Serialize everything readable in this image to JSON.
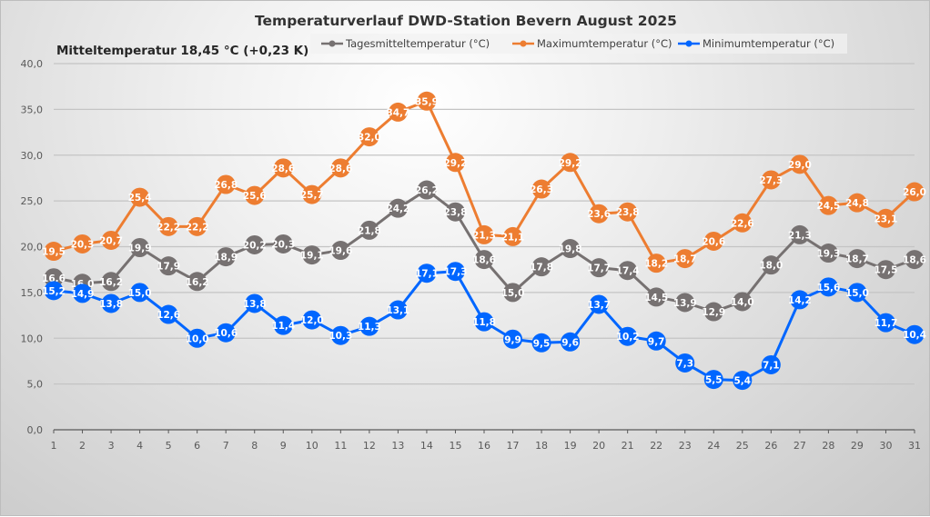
{
  "chart_data": {
    "type": "line",
    "title": "Temperaturverlauf DWD-Station Bevern August 2025",
    "annotation": "Mitteltemperatur 18,45 °C (+0,23 K)",
    "xlabel": "",
    "ylabel": "",
    "ylim": [
      0,
      40
    ],
    "y_ticks": [
      "0,0",
      "5,0",
      "10,0",
      "15,0",
      "20,0",
      "25,0",
      "30,0",
      "35,0",
      "40,0"
    ],
    "y_tick_values": [
      0,
      5,
      10,
      15,
      20,
      25,
      30,
      35,
      40
    ],
    "x": [
      1,
      2,
      3,
      4,
      5,
      6,
      7,
      8,
      9,
      10,
      11,
      12,
      13,
      14,
      15,
      16,
      17,
      18,
      19,
      20,
      21,
      22,
      23,
      24,
      25,
      26,
      27,
      28,
      29,
      30,
      31
    ],
    "x_ticks": [
      "1",
      "2",
      "3",
      "4",
      "5",
      "6",
      "7",
      "8",
      "9",
      "10",
      "11",
      "12",
      "13",
      "14",
      "15",
      "16",
      "17",
      "18",
      "19",
      "20",
      "21",
      "22",
      "23",
      "24",
      "25",
      "26",
      "27",
      "28",
      "29",
      "30",
      "31"
    ],
    "grid": true,
    "legend_position": "top",
    "series": [
      {
        "name": "Tagesmitteltemperatur (°C)",
        "color": "#767171",
        "values": [
          16.6,
          16.0,
          16.2,
          19.9,
          17.9,
          16.2,
          18.9,
          20.2,
          20.3,
          19.1,
          19.6,
          21.8,
          24.2,
          26.2,
          23.8,
          18.6,
          15.0,
          17.8,
          19.8,
          17.7,
          17.4,
          14.5,
          13.9,
          12.9,
          14.0,
          18.0,
          21.3,
          19.3,
          18.7,
          17.5,
          18.6
        ],
        "labels": [
          "16,6",
          "16,0",
          "16,2",
          "19,9",
          "17,9",
          "16,2",
          "18,9",
          "20,2",
          "20,3",
          "19,1",
          "19,6",
          "21,8",
          "24,2",
          "26,2",
          "23,8",
          "18,6",
          "15,0",
          "17,8",
          "19,8",
          "17,7",
          "17,4",
          "14,5",
          "13,9",
          "12,9",
          "14,0",
          "18,0",
          "21,3",
          "19,3",
          "18,7",
          "17,5",
          "18,6"
        ]
      },
      {
        "name": "Maximumtemperatur (°C)",
        "color": "#ED7D31",
        "values": [
          19.5,
          20.3,
          20.7,
          25.4,
          22.2,
          22.2,
          26.8,
          25.6,
          28.6,
          25.7,
          28.6,
          32.0,
          34.7,
          35.9,
          29.2,
          21.3,
          21.1,
          26.3,
          29.2,
          23.6,
          23.8,
          18.2,
          18.7,
          20.6,
          22.6,
          27.3,
          29.0,
          24.5,
          24.8,
          23.1,
          26.0
        ],
        "labels": [
          "19,5",
          "20,3",
          "20,7",
          "25,4",
          "22,2",
          "22,2",
          "26,8",
          "25,6",
          "28,6",
          "25,7",
          "28,6",
          "32,0",
          "34,7",
          "35,9",
          "29,2",
          "21,3",
          "21,1",
          "26,3",
          "29,2",
          "23,6",
          "23,8",
          "18,2",
          "18,7",
          "20,6",
          "22,6",
          "27,3",
          "29,0",
          "24,5",
          "24,8",
          "23,1",
          "26,0"
        ]
      },
      {
        "name": "Minimumtemperatur (°C)",
        "color": "#0066FF",
        "values": [
          15.2,
          14.9,
          13.8,
          15.0,
          12.6,
          10.0,
          10.6,
          13.8,
          11.4,
          12.0,
          10.3,
          11.3,
          13.1,
          17.1,
          17.3,
          11.8,
          9.9,
          9.5,
          9.6,
          13.7,
          10.2,
          9.7,
          7.3,
          5.5,
          5.4,
          7.1,
          14.2,
          15.6,
          15.0,
          11.7,
          10.4
        ],
        "labels": [
          "15,2",
          "14,9",
          "13,8",
          "15,0",
          "12,6",
          "10,0",
          "10,6",
          "13,8",
          "11,4",
          "12,0",
          "10,3",
          "11,3",
          "13,1",
          "17,1",
          "17,3",
          "11,8",
          "9,9",
          "9,5",
          "9,6",
          "13,7",
          "10,2",
          "9,7",
          "7,3",
          "5,5",
          "5,4",
          "7,1",
          "14,2",
          "15,6",
          "15,0",
          "11,7",
          "10,4"
        ]
      }
    ]
  }
}
